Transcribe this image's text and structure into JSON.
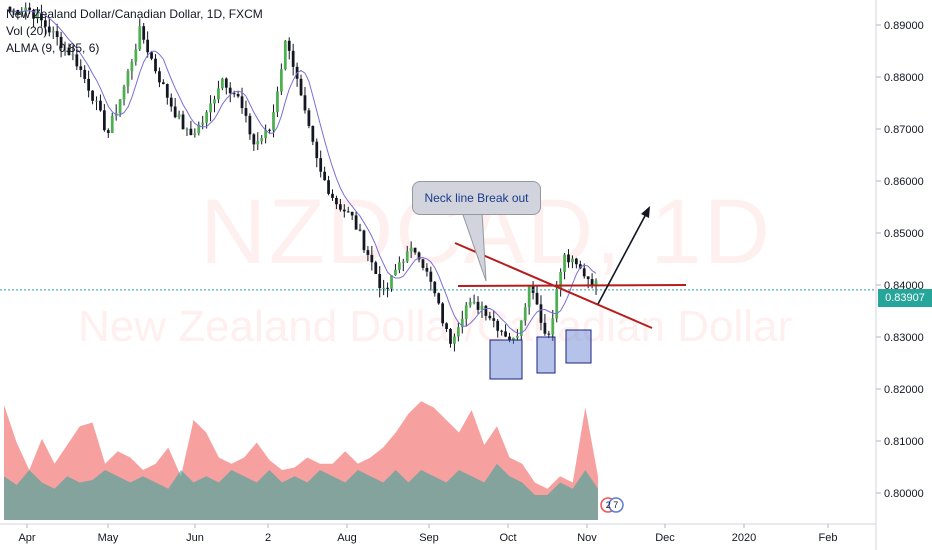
{
  "legend": {
    "title": "New Zealand Dollar/Canadian Dollar, 1D, FXCM",
    "vol": "Vol (20)",
    "alma": "ALMA (9, 0.85, 6)"
  },
  "watermark": {
    "symbol": "NZDCAD, 1D",
    "name": "New Zealand Dollar/Canadian Dollar"
  },
  "annotation": {
    "callout_text": "Neck line Break out"
  },
  "current_price": {
    "label": "0.83907",
    "value": 0.83907
  },
  "event_badge": {
    "label": "2 7"
  },
  "colors": {
    "up": "#26a69a",
    "down": "#ef5350",
    "candle_up_body": "#4caf50",
    "candle_down_body": "#131722",
    "ma": "#7b6fd6",
    "trendline": "#b71c1c",
    "box_fill": "#5c7bd1",
    "box_stroke": "#1a237e",
    "axis_text": "#131722"
  },
  "chart_data": {
    "type": "candlestick",
    "y_axis": {
      "ticks": [
        "0.89000",
        "0.88000",
        "0.87000",
        "0.86000",
        "0.85000",
        "0.84000",
        "0.83000",
        "0.82000",
        "0.81000",
        "0.80000"
      ],
      "range": [
        0.7985,
        0.8945
      ]
    },
    "x_axis": {
      "ticks": [
        "Apr",
        "May",
        "Jun",
        "2",
        "Aug",
        "Sep",
        "Oct",
        "Nov",
        "Dec",
        "2020",
        "Feb"
      ]
    },
    "price_path": [
      [
        0.8925,
        0.892
      ],
      [
        0.8935,
        0.8905
      ],
      [
        0.8905,
        0.889
      ],
      [
        0.887,
        0.885
      ],
      [
        0.8835,
        0.881
      ],
      [
        0.877,
        0.876
      ],
      [
        0.869,
        0.872
      ],
      [
        0.878,
        0.88
      ],
      [
        0.889,
        0.888
      ],
      [
        0.881,
        0.88
      ],
      [
        0.874,
        0.872
      ],
      [
        0.8685,
        0.867
      ],
      [
        0.872,
        0.874
      ],
      [
        0.88,
        0.881
      ],
      [
        0.876,
        0.874
      ],
      [
        0.867,
        0.866
      ],
      [
        0.87,
        0.872
      ],
      [
        0.888,
        0.887
      ],
      [
        0.874,
        0.872
      ],
      [
        0.862,
        0.86
      ],
      [
        0.856,
        0.854
      ],
      [
        0.853,
        0.852
      ],
      [
        0.846,
        0.844
      ],
      [
        0.838,
        0.837
      ],
      [
        0.845,
        0.848
      ],
      [
        0.847,
        0.846
      ],
      [
        0.839,
        0.838
      ],
      [
        0.829,
        0.827
      ],
      [
        0.836,
        0.838
      ],
      [
        0.836,
        0.839
      ],
      [
        0.832,
        0.831
      ],
      [
        0.829,
        0.828
      ],
      [
        0.841,
        0.842
      ],
      [
        0.829,
        0.828
      ],
      [
        0.8455,
        0.8475
      ],
      [
        0.843,
        0.8425
      ],
      [
        0.84,
        0.8391
      ]
    ],
    "volume_profile": [
      [
        0.92,
        0.35
      ],
      [
        0.62,
        0.28
      ],
      [
        0.4,
        0.4
      ],
      [
        0.65,
        0.3
      ],
      [
        0.45,
        0.25
      ],
      [
        0.6,
        0.35
      ],
      [
        0.75,
        0.3
      ],
      [
        0.78,
        0.32
      ],
      [
        0.45,
        0.4
      ],
      [
        0.55,
        0.35
      ],
      [
        0.5,
        0.3
      ],
      [
        0.4,
        0.35
      ],
      [
        0.45,
        0.3
      ],
      [
        0.58,
        0.25
      ],
      [
        0.35,
        0.4
      ],
      [
        0.8,
        0.3
      ],
      [
        0.7,
        0.35
      ],
      [
        0.5,
        0.3
      ],
      [
        0.45,
        0.4
      ],
      [
        0.5,
        0.35
      ],
      [
        0.62,
        0.3
      ],
      [
        0.48,
        0.4
      ],
      [
        0.4,
        0.3
      ],
      [
        0.42,
        0.35
      ],
      [
        0.5,
        0.3
      ],
      [
        0.45,
        0.4
      ],
      [
        0.45,
        0.35
      ],
      [
        0.55,
        0.3
      ],
      [
        0.45,
        0.4
      ],
      [
        0.5,
        0.35
      ],
      [
        0.58,
        0.3
      ],
      [
        0.7,
        0.4
      ],
      [
        0.85,
        0.3
      ],
      [
        0.95,
        0.4
      ],
      [
        0.9,
        0.35
      ],
      [
        0.8,
        0.3
      ],
      [
        0.7,
        0.4
      ],
      [
        0.88,
        0.35
      ],
      [
        0.6,
        0.3
      ],
      [
        0.75,
        0.45
      ],
      [
        0.5,
        0.35
      ],
      [
        0.45,
        0.3
      ],
      [
        0.3,
        0.2
      ],
      [
        0.25,
        0.2
      ],
      [
        0.35,
        0.3
      ],
      [
        0.3,
        0.25
      ],
      [
        0.9,
        0.4
      ],
      [
        0.35,
        0.25
      ]
    ]
  }
}
